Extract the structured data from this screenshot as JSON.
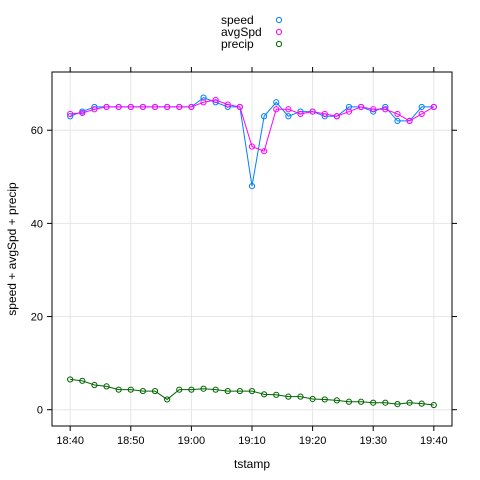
{
  "chart_data": {
    "type": "line",
    "xlabel": "tstamp",
    "ylabel": "speed + avgSpd + precip",
    "xlim": [
      "18:37",
      "19:43"
    ],
    "ylim": [
      -3.5,
      72.5
    ],
    "x_ticks": [
      "18:40",
      "18:50",
      "19:00",
      "19:10",
      "19:20",
      "19:30",
      "19:40"
    ],
    "y_ticks": [
      0,
      20,
      40,
      60
    ],
    "grid": true,
    "legend_position": "top",
    "x": [
      "18:40",
      "18:42",
      "18:44",
      "18:46",
      "18:48",
      "18:50",
      "18:52",
      "18:54",
      "18:56",
      "18:58",
      "19:00",
      "19:02",
      "19:04",
      "19:06",
      "19:08",
      "19:10",
      "19:12",
      "19:14",
      "19:16",
      "19:18",
      "19:20",
      "19:22",
      "19:24",
      "19:26",
      "19:28",
      "19:30",
      "19:32",
      "19:34",
      "19:36",
      "19:38",
      "19:40"
    ],
    "series": [
      {
        "name": "speed",
        "color": "#0080ff",
        "values": [
          63,
          64,
          65,
          65,
          65,
          65,
          65,
          65,
          65,
          65,
          65,
          67,
          66,
          65,
          65,
          48,
          63,
          66,
          63,
          64,
          64,
          63,
          63,
          65,
          65,
          64,
          65,
          62,
          62,
          65,
          65
        ]
      },
      {
        "name": "avgSpd",
        "color": "#ff00ff",
        "values": [
          63.5,
          63.7,
          64.5,
          65,
          65,
          65,
          65,
          65,
          65,
          65,
          65,
          66,
          66.5,
          65.5,
          65,
          56.5,
          55.5,
          64.5,
          64.5,
          63.5,
          64,
          63.5,
          63,
          64,
          65,
          64.5,
          64.5,
          63.5,
          62,
          63.5,
          65
        ]
      },
      {
        "name": "precip",
        "color": "#006400",
        "values": [
          6.5,
          6.2,
          5.3,
          5.0,
          4.3,
          4.3,
          4.0,
          4.0,
          2.2,
          4.3,
          4.3,
          4.5,
          4.3,
          4.0,
          4.0,
          4.0,
          3.3,
          3.2,
          2.8,
          2.8,
          2.3,
          2.2,
          2.0,
          1.7,
          1.7,
          1.5,
          1.5,
          1.2,
          1.5,
          1.3,
          1.0
        ]
      }
    ]
  }
}
